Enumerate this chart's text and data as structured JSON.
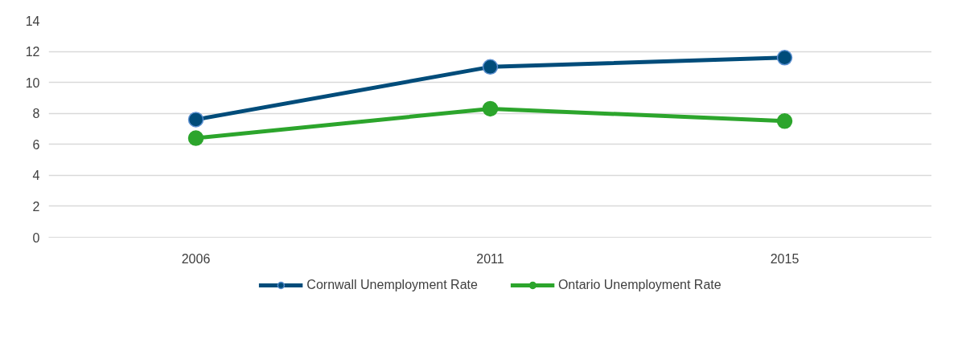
{
  "chart_data": {
    "type": "line",
    "categories": [
      "2006",
      "2011",
      "2015"
    ],
    "series": [
      {
        "name": "Cornwall Unemployment Rate",
        "color": "#004c7a",
        "values": [
          7.6,
          11.0,
          11.6
        ]
      },
      {
        "name": "Ontario Unemployment Rate",
        "color": "#2ca52c",
        "values": [
          6.4,
          8.3,
          7.5
        ]
      }
    ],
    "ylim": [
      0,
      14
    ],
    "yticks": [
      0,
      2,
      4,
      6,
      8,
      10,
      12,
      14
    ],
    "grid": "y",
    "legend": "bottom",
    "marker": "circle",
    "line_style": "solid"
  }
}
